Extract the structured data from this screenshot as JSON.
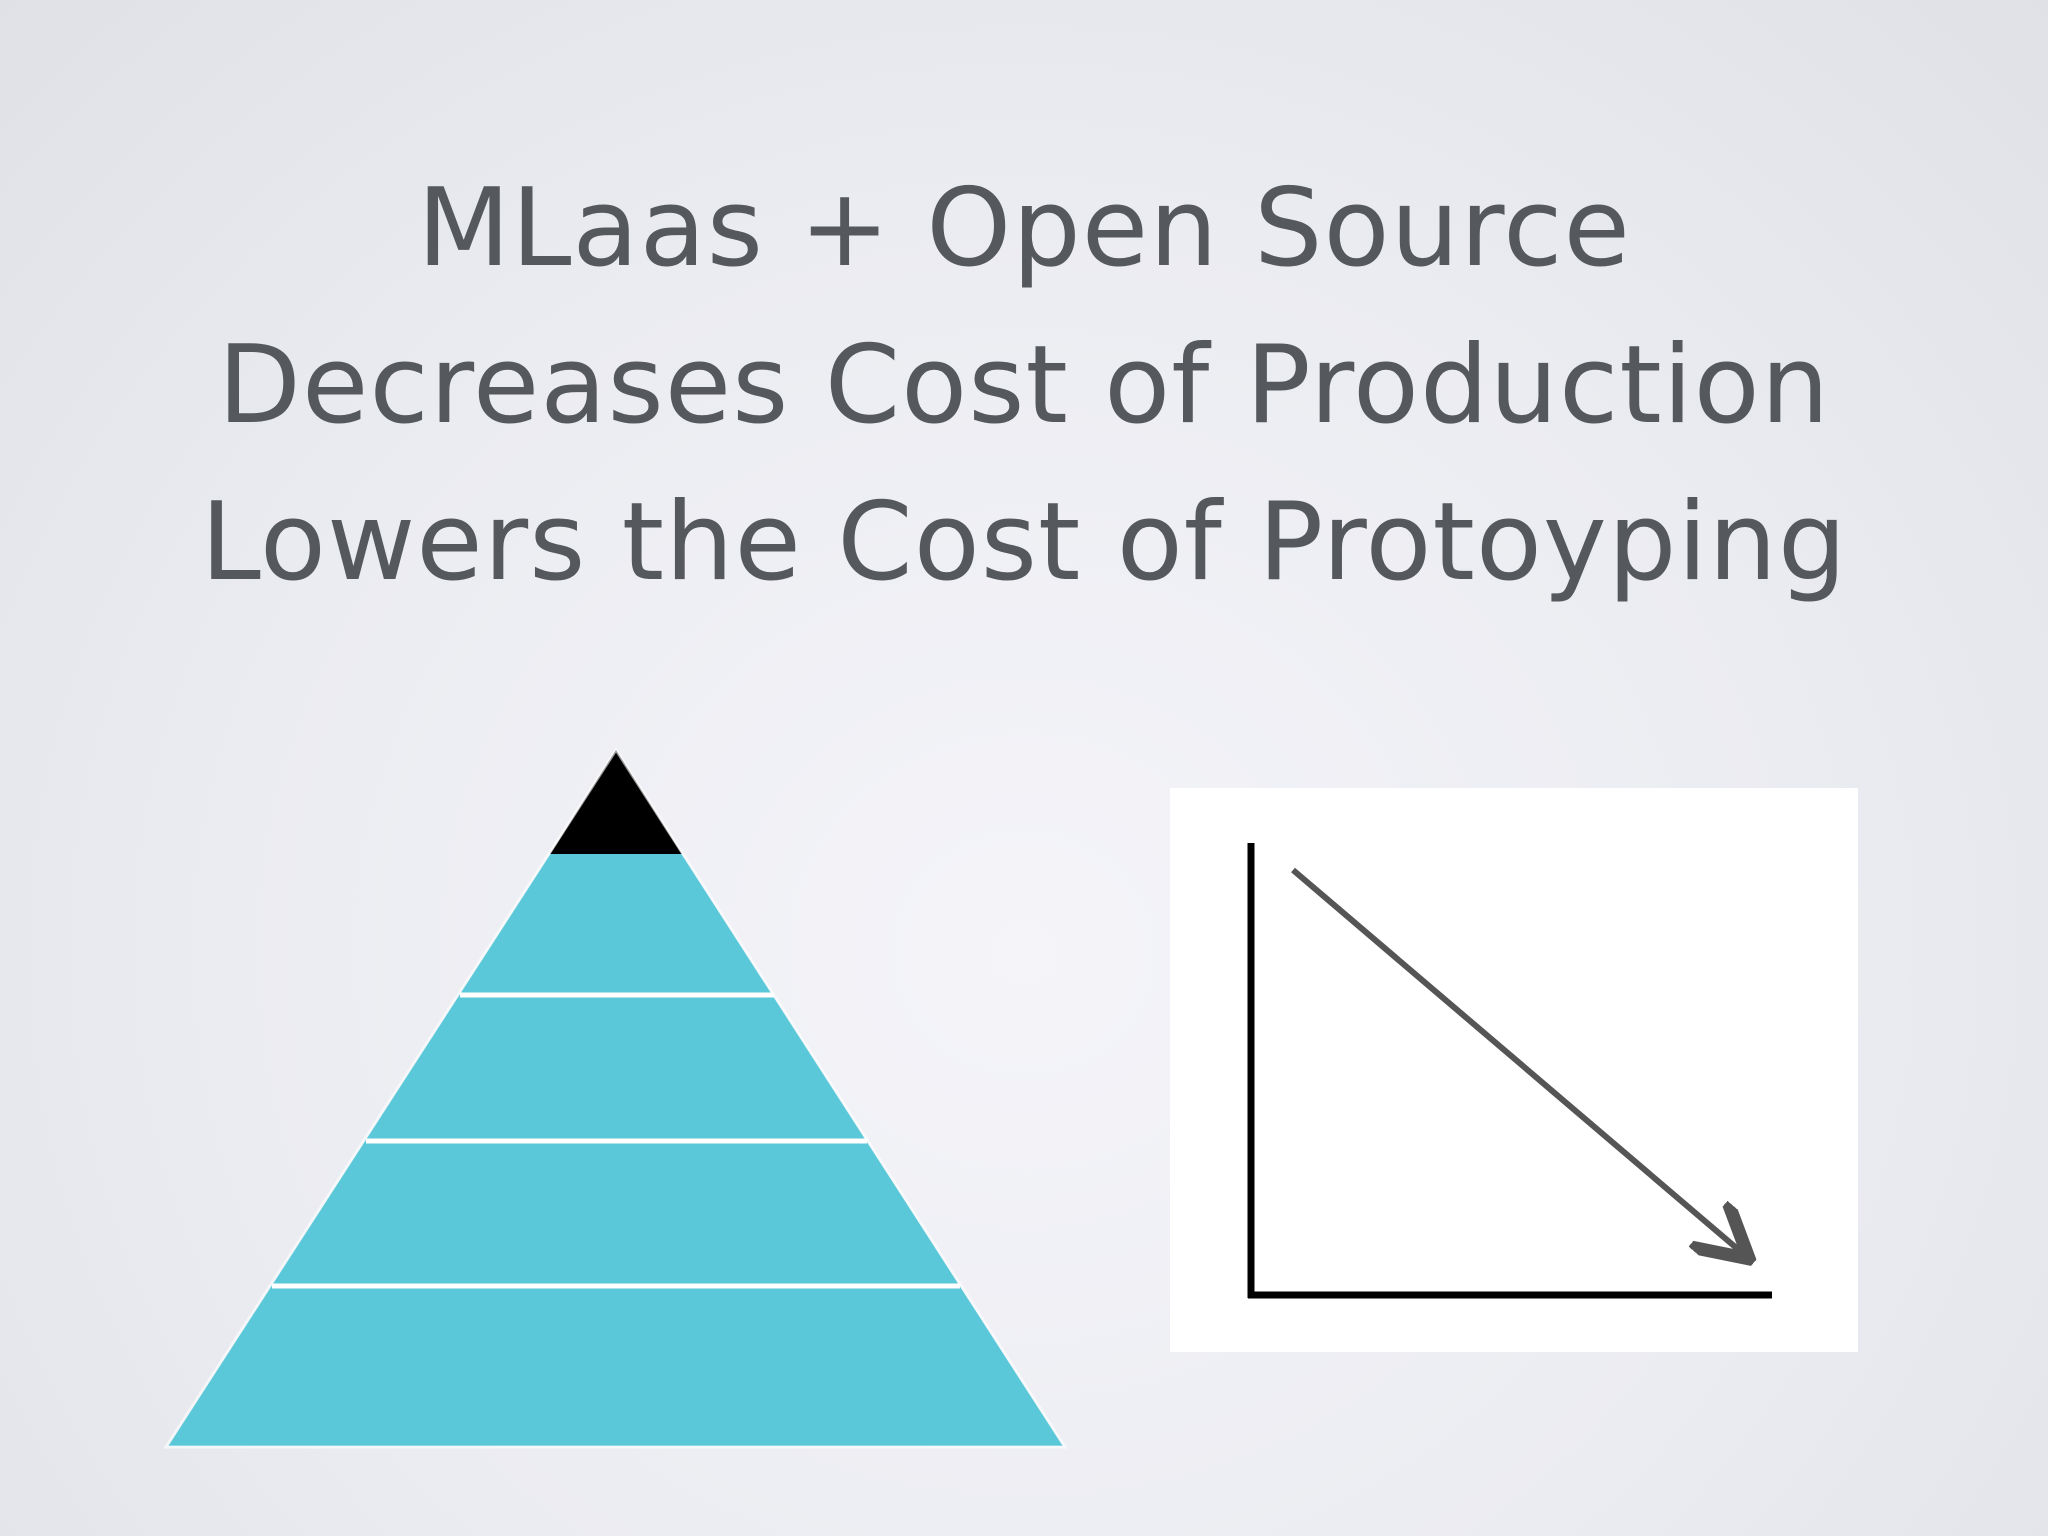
{
  "slide": {
    "title_lines": [
      "MLaas + Open Source",
      "Decreases Cost of Production",
      "Lowers the Cost of Protoyping"
    ]
  },
  "pyramid": {
    "tiers": 5,
    "top_tier_color": "#000000",
    "tier_color": "#5bc8d9",
    "divider_color": "#ffffff"
  },
  "trend_chart": {
    "direction": "decreasing",
    "axis_color": "#000000",
    "arrow_color": "#555555",
    "panel_color": "#ffffff"
  }
}
